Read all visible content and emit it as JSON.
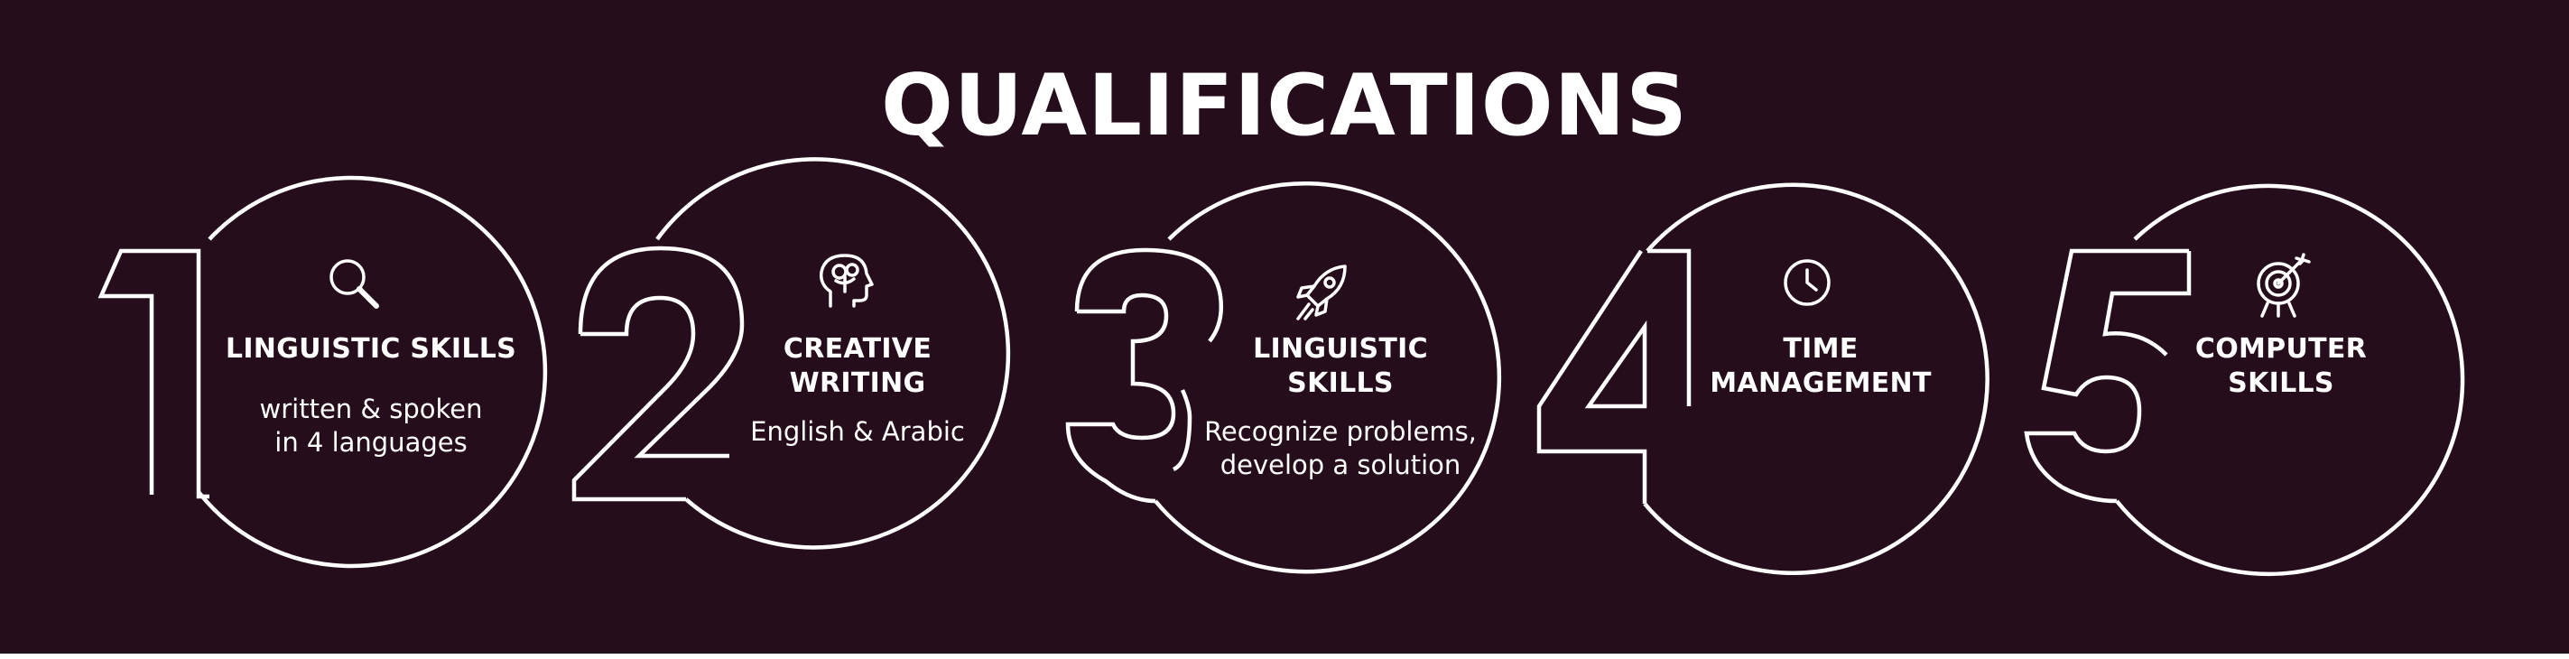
{
  "title": "QUALIFICATIONS",
  "items": [
    {
      "number": "1",
      "icon": "magnifier-icon",
      "heading": "LINGUISTIC SKILLS",
      "description": "written & spoken\nin 4 languages"
    },
    {
      "number": "2",
      "icon": "brain-head-icon",
      "heading": "CREATIVE\nWRITING",
      "description": "English & Arabic"
    },
    {
      "number": "3",
      "icon": "rocket-icon",
      "heading": "LINGUISTIC\nSKILLS",
      "description": "Recognize problems,\ndevelop a solution"
    },
    {
      "number": "4",
      "icon": "clock-icon",
      "heading": "TIME\nMANAGEMENT",
      "description": ""
    },
    {
      "number": "5",
      "icon": "target-icon",
      "heading": "COMPUTER\nSKILLS",
      "description": ""
    }
  ],
  "colors": {
    "background": "#260d1b",
    "foreground": "#ffffff"
  }
}
